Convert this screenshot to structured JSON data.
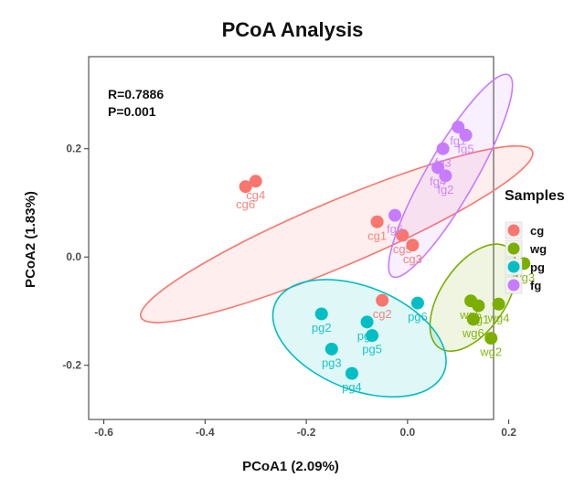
{
  "chart_data": {
    "type": "scatter",
    "title": "PCoA Analysis",
    "xlabel": "PCoA1 (2.09%)",
    "ylabel": "PCoA2 (1.83%)",
    "xlim": [
      -0.63,
      0.17
    ],
    "ylim": [
      -0.3,
      0.37
    ],
    "x_ticks": [
      -0.6,
      -0.4,
      -0.2,
      0.0,
      0.2
    ],
    "x_tick_labels": [
      "-0.6",
      "-0.4",
      "-0.2",
      "0.0",
      "0.2"
    ],
    "y_ticks": [
      -0.2,
      0.0,
      0.2
    ],
    "y_tick_labels": [
      "-0.2",
      "0.0",
      "0.2"
    ],
    "grid": false,
    "legend_placement": "right",
    "stats": [
      "R=0.7886",
      "P=0.001"
    ],
    "legend_title": "Samples",
    "series": [
      {
        "name": "cg",
        "color": "#F8766D",
        "points": [
          {
            "x": -0.3,
            "y": 0.14,
            "label": "cg4"
          },
          {
            "x": -0.32,
            "y": 0.13,
            "label": "cg6"
          },
          {
            "x": -0.06,
            "y": 0.065,
            "label": "cg1"
          },
          {
            "x": -0.01,
            "y": 0.04,
            "label": "cg5"
          },
          {
            "x": 0.01,
            "y": 0.022,
            "label": "cg3"
          },
          {
            "x": -0.05,
            "y": -0.08,
            "label": "cg2"
          }
        ],
        "label_pos": [
          [
            0.0,
            0.033
          ],
          [
            0.0,
            0.04
          ],
          [
            0.0,
            0.033
          ],
          [
            0.0,
            0.033
          ],
          [
            0.0,
            0.033
          ],
          [
            0.0,
            0.033
          ]
        ],
        "ellipse": {
          "cx": -0.14,
          "cy": 0.042,
          "rx": 0.42,
          "ry": 0.06,
          "angle_deg": -23.0
        }
      },
      {
        "name": "wg",
        "color": "#7CAE00",
        "points": [
          {
            "x": 0.125,
            "y": -0.081,
            "label": "wg5"
          },
          {
            "x": 0.23,
            "y": -0.012,
            "label": "wg3"
          },
          {
            "x": 0.14,
            "y": -0.09,
            "label": "wg1"
          },
          {
            "x": 0.18,
            "y": -0.087,
            "label": "wg4"
          },
          {
            "x": 0.165,
            "y": -0.15,
            "label": "wg2"
          },
          {
            "x": 0.13,
            "y": -0.115,
            "label": "wg6"
          }
        ],
        "label_pos": [
          [
            0.0,
            0.033
          ],
          [
            0.0,
            0.033
          ],
          [
            0.0,
            0.033
          ],
          [
            0.0,
            0.033
          ],
          [
            0.0,
            0.033
          ],
          [
            0.0,
            0.033
          ]
        ],
        "ellipse": {
          "cx": 0.13,
          "cy": -0.075,
          "rx": 0.12,
          "ry": 0.06,
          "angle_deg": -56.0
        }
      },
      {
        "name": "pg",
        "color": "#00BFC4",
        "points": [
          {
            "x": -0.08,
            "y": -0.12,
            "label": "pg1"
          },
          {
            "x": -0.07,
            "y": -0.145,
            "label": "pg5"
          },
          {
            "x": -0.17,
            "y": -0.105,
            "label": "pg2"
          },
          {
            "x": -0.15,
            "y": -0.17,
            "label": "pg3"
          },
          {
            "x": -0.11,
            "y": -0.215,
            "label": "pg4"
          },
          {
            "x": 0.02,
            "y": -0.085,
            "label": "pg6"
          }
        ],
        "label_pos": [
          [
            0.0,
            0.033
          ],
          [
            0.0,
            0.033
          ],
          [
            0.0,
            0.033
          ],
          [
            0.0,
            0.033
          ],
          [
            0.0,
            0.033
          ],
          [
            0.0,
            0.033
          ]
        ],
        "ellipse": {
          "cx": -0.095,
          "cy": -0.15,
          "rx": 0.18,
          "ry": 0.095,
          "angle_deg": 22.0
        }
      },
      {
        "name": "fg",
        "color": "#C77CFF",
        "points": [
          {
            "x": 0.115,
            "y": 0.225,
            "label": "fg5"
          },
          {
            "x": 0.1,
            "y": 0.24,
            "label": "fg1"
          },
          {
            "x": 0.07,
            "y": 0.2,
            "label": "fg3"
          },
          {
            "x": 0.075,
            "y": 0.15,
            "label": "fg2"
          },
          {
            "x": 0.06,
            "y": 0.165,
            "label": "fg4"
          },
          {
            "x": -0.025,
            "y": 0.077,
            "label": "fg6"
          }
        ],
        "label_pos": [
          [
            0.0,
            0.033
          ],
          [
            0.0,
            0.033
          ],
          [
            0.0,
            0.033
          ],
          [
            0.0,
            0.033
          ],
          [
            0.0,
            0.033
          ],
          [
            0.0,
            0.033
          ]
        ],
        "ellipse": {
          "cx": 0.085,
          "cy": 0.15,
          "rx": 0.23,
          "ry": 0.045,
          "angle_deg": -60.0
        }
      }
    ]
  }
}
